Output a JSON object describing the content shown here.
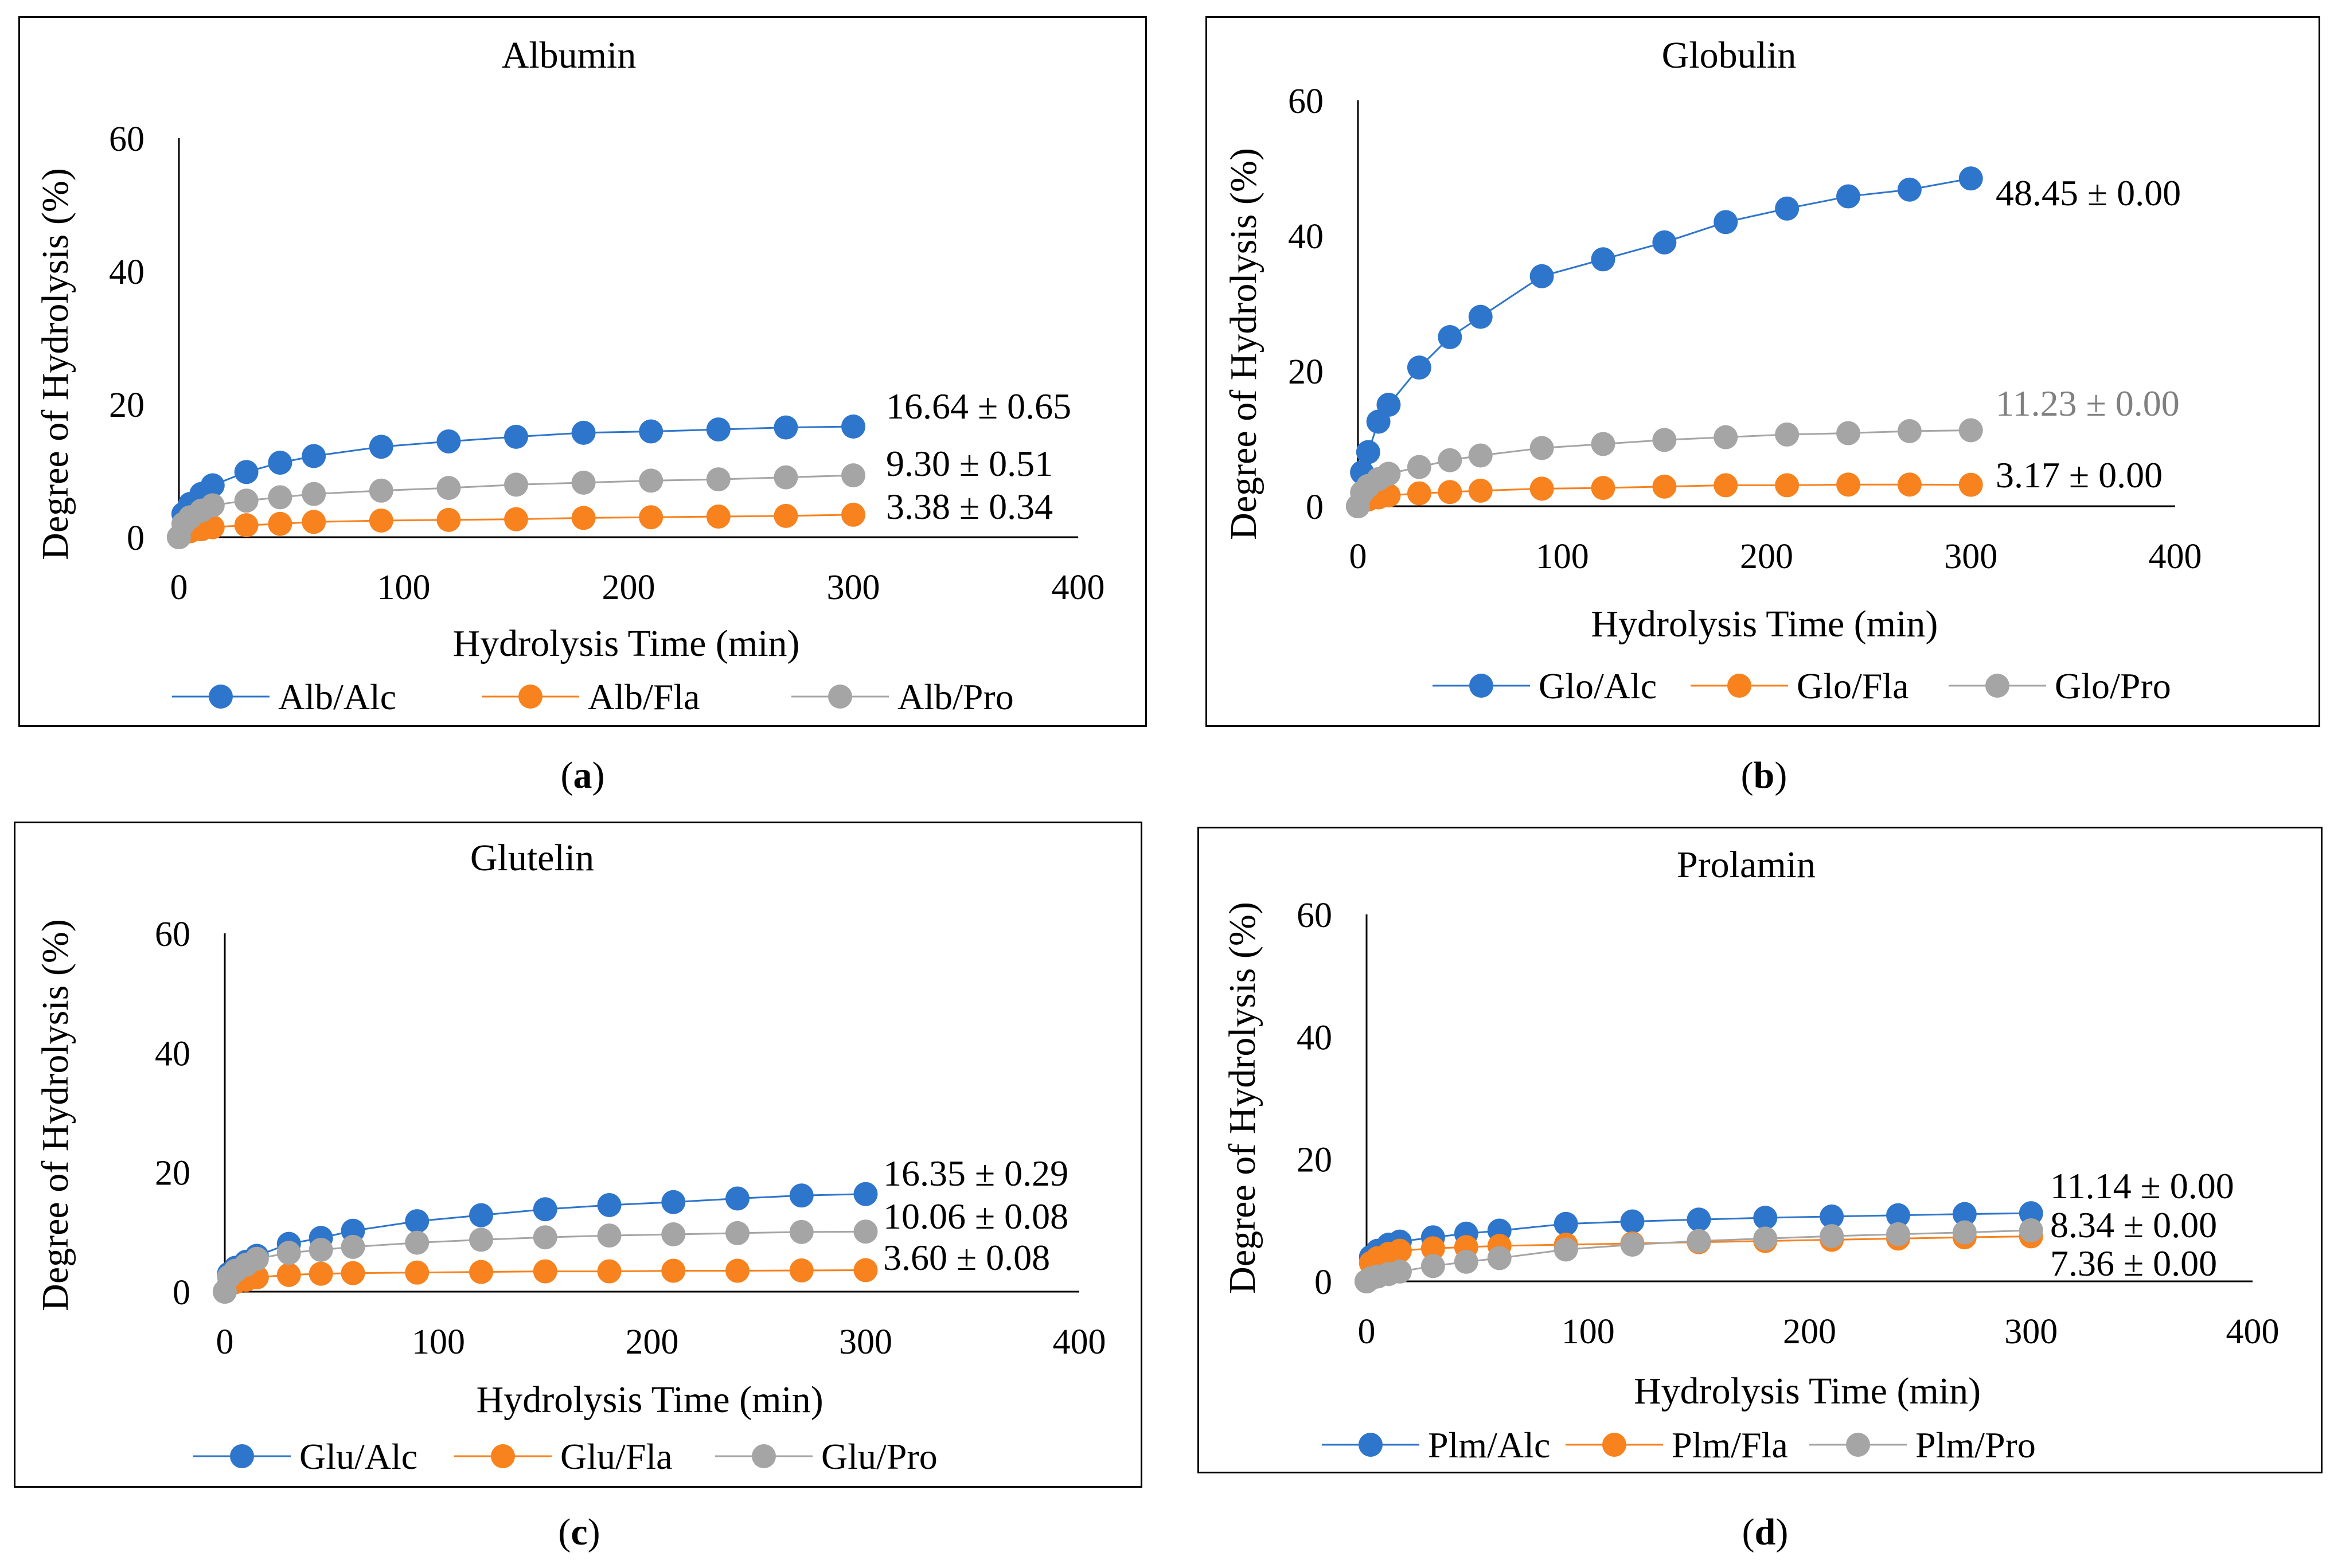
{
  "figure": {
    "panels": [
      {
        "letter": "a",
        "chart_title": "Albumin"
      },
      {
        "letter": "b",
        "chart_title": "Globulin"
      },
      {
        "letter": "c",
        "chart_title": "Glutelin"
      },
      {
        "letter": "d",
        "chart_title": "Prolamin"
      }
    ]
  },
  "colors": {
    "alc": "#2E75CC",
    "fla": "#F7821E",
    "pro": "#A5A5A5",
    "axis": "#000000"
  },
  "chart_data": [
    {
      "type": "line",
      "title": "Albumin",
      "xlabel": "Hydrolysis Time (min)",
      "ylabel": "Degree of Hydrolysis (%)",
      "xlim": [
        0,
        400
      ],
      "ylim": [
        0,
        60
      ],
      "xticks": [
        "0",
        "100",
        "200",
        "300",
        "400"
      ],
      "yticks": [
        "0",
        "20",
        "40",
        "60"
      ],
      "x": [
        0,
        2,
        5,
        10,
        15,
        30,
        45,
        60,
        90,
        120,
        150,
        180,
        210,
        240,
        270,
        300
      ],
      "series": [
        {
          "name": "Alb/Alc",
          "color_key": "alc",
          "values": [
            0,
            3.5,
            5.0,
            6.5,
            7.8,
            9.8,
            11.2,
            12.2,
            13.6,
            14.4,
            15.1,
            15.7,
            15.9,
            16.2,
            16.5,
            16.64
          ],
          "end_label": "16.64 ± 0.65",
          "label_color": "#000000"
        },
        {
          "name": "Alb/Fla",
          "color_key": "fla",
          "values": [
            0,
            0.6,
            0.9,
            1.2,
            1.5,
            1.8,
            2.0,
            2.3,
            2.5,
            2.6,
            2.7,
            2.9,
            3.0,
            3.1,
            3.2,
            3.38
          ],
          "end_label": "3.38 ± 0.34",
          "label_color": "#000000"
        },
        {
          "name": "Alb/Pro",
          "color_key": "pro",
          "values": [
            0,
            2.0,
            3.0,
            4.0,
            4.8,
            5.5,
            6.0,
            6.5,
            7.0,
            7.4,
            7.9,
            8.2,
            8.5,
            8.7,
            9.0,
            9.3
          ],
          "end_label": "9.30 ± 0.51",
          "label_color": "#000000"
        }
      ]
    },
    {
      "type": "line",
      "title": "Globulin",
      "xlabel": "Hydrolysis Time (min)",
      "ylabel": "Degree of Hydrolysis (%)",
      "xlim": [
        0,
        400
      ],
      "ylim": [
        0,
        60
      ],
      "xticks": [
        "0",
        "100",
        "200",
        "300",
        "400"
      ],
      "yticks": [
        "0",
        "20",
        "40",
        "60"
      ],
      "x": [
        0,
        2,
        5,
        10,
        15,
        30,
        45,
        60,
        90,
        120,
        150,
        180,
        210,
        240,
        270,
        300
      ],
      "series": [
        {
          "name": "Glo/Alc",
          "color_key": "alc",
          "values": [
            0,
            5.0,
            8.0,
            12.5,
            15.0,
            20.5,
            25.0,
            28.0,
            34.0,
            36.5,
            39.0,
            42.0,
            44.0,
            45.8,
            46.8,
            48.45
          ],
          "end_label": "48.45 ± 0.00",
          "label_color": "#000000"
        },
        {
          "name": "Glo/Fla",
          "color_key": "fla",
          "values": [
            0,
            0.8,
            1.0,
            1.3,
            1.6,
            1.9,
            2.1,
            2.3,
            2.6,
            2.7,
            2.9,
            3.1,
            3.1,
            3.2,
            3.2,
            3.17
          ],
          "end_label": "3.17 ± 0.00",
          "label_color": "#000000"
        },
        {
          "name": "Glo/Pro",
          "color_key": "pro",
          "values": [
            0,
            2.0,
            3.0,
            4.0,
            4.8,
            5.8,
            6.8,
            7.5,
            8.6,
            9.2,
            9.8,
            10.2,
            10.6,
            10.8,
            11.1,
            11.23
          ],
          "end_label": "11.23 ± 0.00",
          "label_color": "#808080"
        }
      ]
    },
    {
      "type": "line",
      "title": "Glutelin",
      "xlabel": "Hydrolysis Time (min)",
      "ylabel": "Degree of Hydrolysis (%)",
      "xlim": [
        0,
        400
      ],
      "ylim": [
        0,
        60
      ],
      "xticks": [
        "0",
        "100",
        "200",
        "300",
        "400"
      ],
      "yticks": [
        "0",
        "20",
        "40",
        "60"
      ],
      "x": [
        0,
        2,
        5,
        10,
        15,
        30,
        45,
        60,
        90,
        120,
        150,
        180,
        210,
        240,
        270,
        300
      ],
      "series": [
        {
          "name": "Glu/Alc",
          "color_key": "alc",
          "values": [
            0,
            3.0,
            4.0,
            5.0,
            6.0,
            8.0,
            9.0,
            10.2,
            11.8,
            12.8,
            13.8,
            14.5,
            15.0,
            15.6,
            16.1,
            16.35
          ],
          "end_label": "16.35 ± 0.29",
          "label_color": "#000000"
        },
        {
          "name": "Glu/Fla",
          "color_key": "fla",
          "values": [
            0,
            1.2,
            1.6,
            2.0,
            2.4,
            2.8,
            3.0,
            3.1,
            3.2,
            3.3,
            3.4,
            3.4,
            3.5,
            3.5,
            3.55,
            3.6
          ],
          "end_label": "3.60 ± 0.08",
          "label_color": "#000000"
        },
        {
          "name": "Glu/Pro",
          "color_key": "pro",
          "values": [
            0,
            2.5,
            3.5,
            4.5,
            5.5,
            6.5,
            7.0,
            7.5,
            8.2,
            8.7,
            9.1,
            9.4,
            9.6,
            9.8,
            10.0,
            10.06
          ],
          "end_label": "10.06 ± 0.08",
          "label_color": "#000000"
        }
      ]
    },
    {
      "type": "line",
      "title": "Prolamin",
      "xlabel": "Hydrolysis Time (min)",
      "ylabel": "Degree of Hydrolysis (%)",
      "xlim": [
        0,
        400
      ],
      "ylim": [
        0,
        60
      ],
      "xticks": [
        "0",
        "100",
        "200",
        "300",
        "400"
      ],
      "yticks": [
        "0",
        "20",
        "40",
        "60"
      ],
      "x": [
        0,
        2,
        5,
        10,
        15,
        30,
        45,
        60,
        90,
        120,
        150,
        180,
        210,
        240,
        270,
        300
      ],
      "series": [
        {
          "name": "Plm/Alc",
          "color_key": "alc",
          "values": [
            0,
            4.0,
            5.0,
            6.0,
            6.5,
            7.2,
            7.8,
            8.3,
            9.4,
            9.8,
            10.1,
            10.4,
            10.6,
            10.8,
            11.0,
            11.14
          ],
          "end_label": "11.14 ± 0.00",
          "label_color": "#000000"
        },
        {
          "name": "Plm/Fla",
          "color_key": "fla",
          "values": [
            0,
            3.0,
            3.8,
            4.5,
            5.0,
            5.4,
            5.6,
            5.8,
            6.0,
            6.2,
            6.4,
            6.6,
            6.8,
            7.0,
            7.2,
            7.36
          ],
          "end_label": "7.36 ± 0.00",
          "label_color": "#000000"
        },
        {
          "name": "Plm/Pro",
          "color_key": "pro",
          "values": [
            0,
            0.5,
            0.8,
            1.2,
            1.6,
            2.5,
            3.2,
            3.8,
            5.2,
            6.0,
            6.6,
            7.0,
            7.4,
            7.7,
            8.0,
            8.34
          ],
          "end_label": "8.34 ± 0.00",
          "label_color": "#000000"
        }
      ]
    }
  ]
}
